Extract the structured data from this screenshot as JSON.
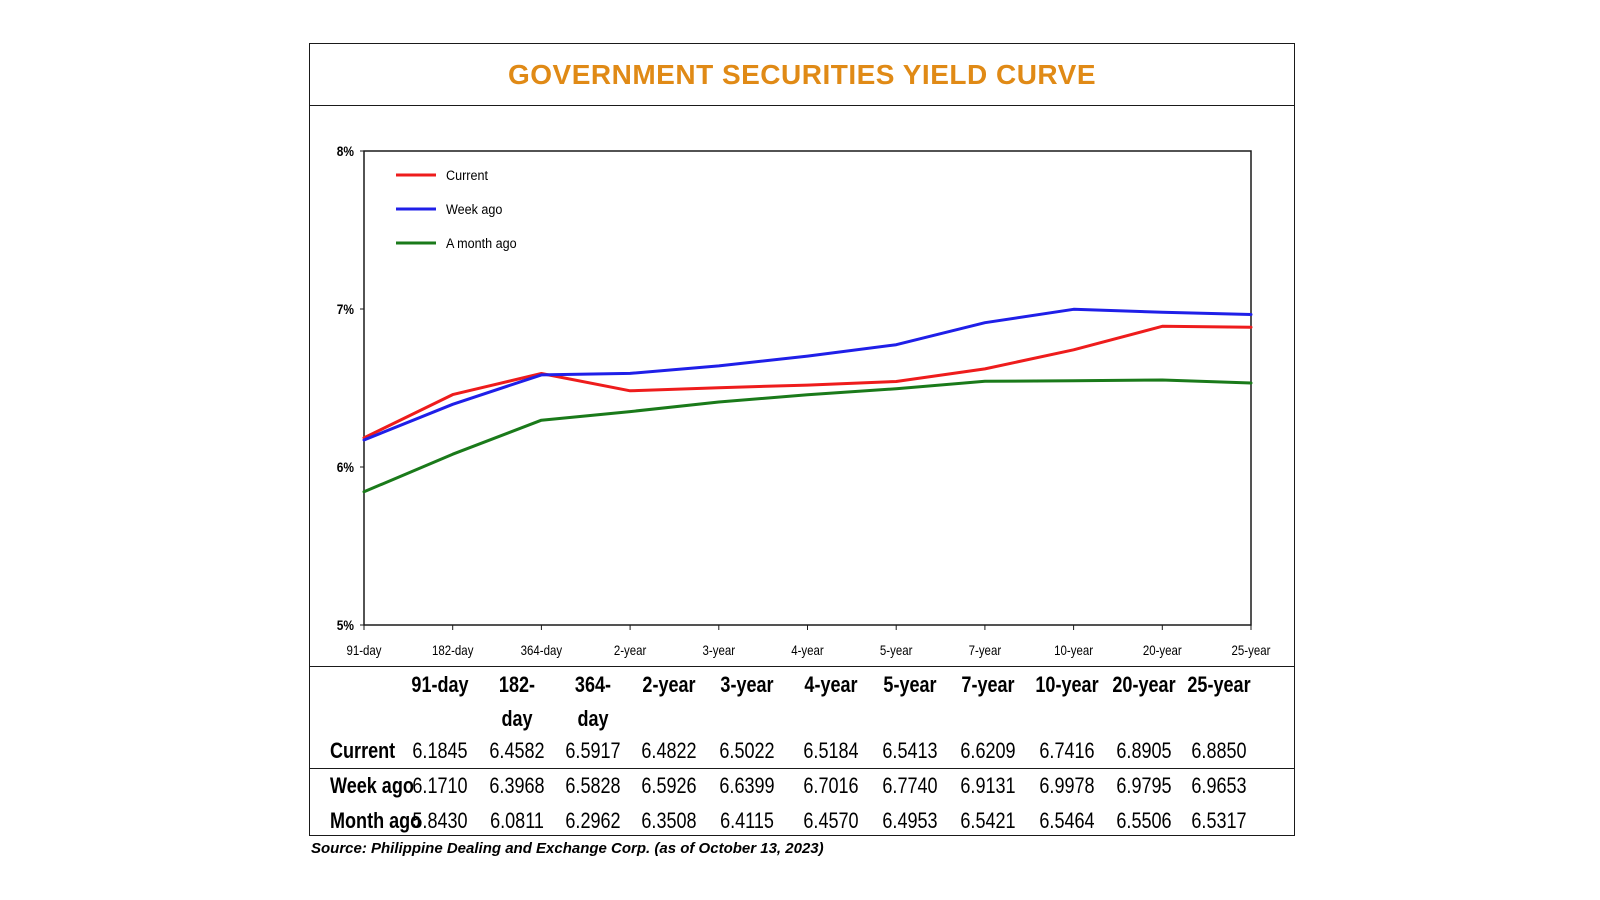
{
  "title": "GOVERNMENT SECURITIES YIELD CURVE",
  "source": "Source: Philippine Dealing and Exchange Corp. (as of October 13, 2023)",
  "colors": {
    "title": "#e08a16",
    "current": "#ee1c1c",
    "week_ago": "#1f1fe8",
    "month_ago": "#1a7a1a"
  },
  "chart_data": {
    "type": "line",
    "categories": [
      "91-day",
      "182-day",
      "364-day",
      "2-year",
      "3-year",
      "4-year",
      "5-year",
      "7-year",
      "10-year",
      "20-year",
      "25-year"
    ],
    "y_ticks": [
      "5%",
      "6%",
      "7%",
      "8%"
    ],
    "ylim": [
      5,
      8
    ],
    "legend_position": "top-left",
    "series": [
      {
        "name": "Current",
        "color": "#ee1c1c",
        "values": [
          6.1845,
          6.4582,
          6.5917,
          6.4822,
          6.5022,
          6.5184,
          6.5413,
          6.6209,
          6.7416,
          6.8905,
          6.885
        ]
      },
      {
        "name": "Week ago",
        "color": "#1f1fe8",
        "values": [
          6.171,
          6.3968,
          6.5828,
          6.5926,
          6.6399,
          6.7016,
          6.774,
          6.9131,
          6.9978,
          6.9795,
          6.9653
        ]
      },
      {
        "name": "A month ago",
        "color": "#1a7a1a",
        "values": [
          5.843,
          6.0811,
          6.2962,
          6.3508,
          6.4115,
          6.457,
          6.4953,
          6.5421,
          6.5464,
          6.5506,
          6.5317
        ]
      }
    ]
  },
  "table": {
    "headers": [
      "91-day",
      "182-day",
      "364-day",
      "2-year",
      "3-year",
      "4-year",
      "5-year",
      "7-year",
      "10-year",
      "20-year",
      "25-year"
    ],
    "rows": [
      {
        "label": "Current",
        "values": [
          "6.1845",
          "6.4582",
          "6.5917",
          "6.4822",
          "6.5022",
          "6.5184",
          "6.5413",
          "6.6209",
          "6.7416",
          "6.8905",
          "6.8850"
        ]
      },
      {
        "label": "Week ago",
        "values": [
          "6.1710",
          "6.3968",
          "6.5828",
          "6.5926",
          "6.6399",
          "6.7016",
          "6.7740",
          "6.9131",
          "6.9978",
          "6.9795",
          "6.9653"
        ]
      },
      {
        "label": "Month ago",
        "values": [
          "5.8430",
          "6.0811",
          "6.2962",
          "6.3508",
          "6.4115",
          "6.4570",
          "6.4953",
          "6.5421",
          "6.5464",
          "6.5506",
          "6.5317"
        ]
      }
    ]
  }
}
